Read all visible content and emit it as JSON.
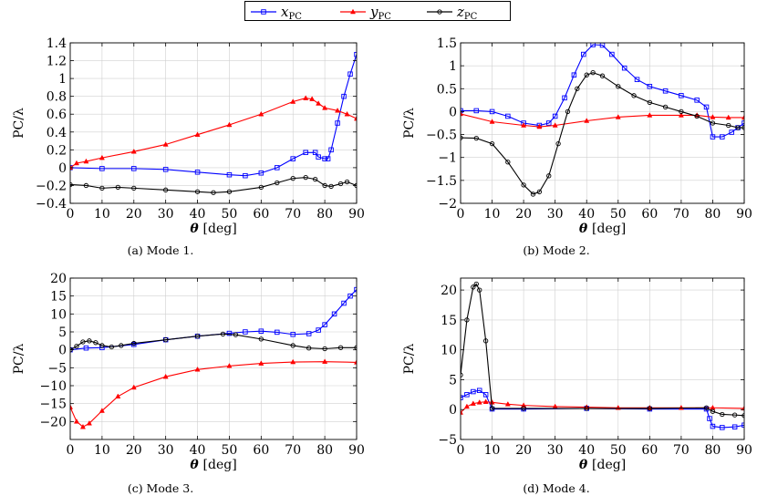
{
  "legend": [
    {
      "name": "x",
      "sub": "PC",
      "color": "#0000ff",
      "marker": "square"
    },
    {
      "name": "y",
      "sub": "PC",
      "color": "#ff0000",
      "marker": "triangle"
    },
    {
      "name": "z",
      "sub": "PC",
      "color": "#000000",
      "marker": "circle"
    }
  ],
  "chart_data": [
    {
      "type": "line",
      "caption": "(a) Mode 1.",
      "xlabel_sym": "θ",
      "xlabel_unit": "[deg]",
      "ylabel": "PC/λ",
      "xlim": [
        0,
        90
      ],
      "ylim": [
        -0.4,
        1.4
      ],
      "xticks": [
        0,
        10,
        20,
        30,
        40,
        50,
        60,
        70,
        80,
        90
      ],
      "yticks": [
        -0.4,
        -0.2,
        0,
        0.2,
        0.4,
        0.6,
        0.8,
        1,
        1.2,
        1.4
      ],
      "ytick_labels": [
        "−0.4",
        "−0.2",
        "0",
        "0.2",
        "0.4",
        "0.6",
        "0.8",
        "1",
        "1.2",
        "1.4"
      ],
      "grid": true,
      "series": [
        {
          "key": "x",
          "color": "#0000ff",
          "marker": "square",
          "points": [
            [
              0,
              0
            ],
            [
              10,
              -0.01
            ],
            [
              20,
              -0.01
            ],
            [
              30,
              -0.02
            ],
            [
              40,
              -0.05
            ],
            [
              50,
              -0.08
            ],
            [
              55,
              -0.09
            ],
            [
              60,
              -0.06
            ],
            [
              65,
              0.0
            ],
            [
              70,
              0.1
            ],
            [
              74,
              0.17
            ],
            [
              77,
              0.17
            ],
            [
              78,
              0.12
            ],
            [
              80,
              0.1
            ],
            [
              81,
              0.1
            ],
            [
              82,
              0.2
            ],
            [
              84,
              0.5
            ],
            [
              86,
              0.8
            ],
            [
              88,
              1.05
            ],
            [
              90,
              1.27
            ]
          ]
        },
        {
          "key": "y",
          "color": "#ff0000",
          "marker": "triangle",
          "points": [
            [
              0,
              0
            ],
            [
              2,
              0.05
            ],
            [
              5,
              0.07
            ],
            [
              10,
              0.11
            ],
            [
              20,
              0.18
            ],
            [
              30,
              0.26
            ],
            [
              40,
              0.37
            ],
            [
              50,
              0.48
            ],
            [
              60,
              0.6
            ],
            [
              70,
              0.74
            ],
            [
              74,
              0.78
            ],
            [
              76,
              0.77
            ],
            [
              78,
              0.72
            ],
            [
              80,
              0.67
            ],
            [
              84,
              0.64
            ],
            [
              87,
              0.6
            ],
            [
              90,
              0.55
            ]
          ]
        },
        {
          "key": "z",
          "color": "#000000",
          "marker": "circle",
          "points": [
            [
              0,
              -0.19
            ],
            [
              5,
              -0.2
            ],
            [
              10,
              -0.23
            ],
            [
              15,
              -0.22
            ],
            [
              20,
              -0.23
            ],
            [
              30,
              -0.25
            ],
            [
              40,
              -0.27
            ],
            [
              45,
              -0.28
            ],
            [
              50,
              -0.27
            ],
            [
              60,
              -0.22
            ],
            [
              65,
              -0.17
            ],
            [
              70,
              -0.12
            ],
            [
              74,
              -0.11
            ],
            [
              77,
              -0.13
            ],
            [
              80,
              -0.2
            ],
            [
              82,
              -0.21
            ],
            [
              85,
              -0.18
            ],
            [
              87,
              -0.16
            ],
            [
              90,
              -0.2
            ]
          ]
        }
      ]
    },
    {
      "type": "line",
      "caption": "(b) Mode 2.",
      "xlabel_sym": "θ",
      "xlabel_unit": "[deg]",
      "ylabel": "PC/λ",
      "xlim": [
        0,
        90
      ],
      "ylim": [
        -2,
        1.5
      ],
      "xticks": [
        0,
        10,
        20,
        30,
        40,
        50,
        60,
        70,
        80,
        90
      ],
      "yticks": [
        -2,
        -1.5,
        -1,
        -0.5,
        0,
        0.5,
        1,
        1.5
      ],
      "ytick_labels": [
        "−2",
        "−1.5",
        "−1",
        "−0.5",
        "0",
        "0.5",
        "1",
        "1.5"
      ],
      "grid": true,
      "series": [
        {
          "key": "x",
          "color": "#0000ff",
          "marker": "square",
          "points": [
            [
              0,
              0.02
            ],
            [
              5,
              0.02
            ],
            [
              10,
              0.0
            ],
            [
              15,
              -0.1
            ],
            [
              20,
              -0.25
            ],
            [
              25,
              -0.3
            ],
            [
              28,
              -0.25
            ],
            [
              30,
              -0.1
            ],
            [
              33,
              0.3
            ],
            [
              36,
              0.8
            ],
            [
              39,
              1.25
            ],
            [
              42,
              1.46
            ],
            [
              45,
              1.45
            ],
            [
              48,
              1.25
            ],
            [
              52,
              0.95
            ],
            [
              56,
              0.7
            ],
            [
              60,
              0.55
            ],
            [
              65,
              0.45
            ],
            [
              70,
              0.35
            ],
            [
              75,
              0.25
            ],
            [
              78,
              0.1
            ],
            [
              80,
              -0.55
            ],
            [
              83,
              -0.55
            ],
            [
              86,
              -0.45
            ],
            [
              88,
              -0.35
            ],
            [
              90,
              -0.25
            ]
          ]
        },
        {
          "key": "y",
          "color": "#ff0000",
          "marker": "triangle",
          "points": [
            [
              0,
              -0.05
            ],
            [
              10,
              -0.22
            ],
            [
              20,
              -0.3
            ],
            [
              25,
              -0.33
            ],
            [
              30,
              -0.3
            ],
            [
              40,
              -0.2
            ],
            [
              50,
              -0.12
            ],
            [
              60,
              -0.08
            ],
            [
              70,
              -0.08
            ],
            [
              75,
              -0.08
            ],
            [
              80,
              -0.12
            ],
            [
              85,
              -0.13
            ],
            [
              90,
              -0.13
            ]
          ]
        },
        {
          "key": "z",
          "color": "#000000",
          "marker": "circle",
          "points": [
            [
              0,
              -0.57
            ],
            [
              5,
              -0.58
            ],
            [
              10,
              -0.7
            ],
            [
              15,
              -1.1
            ],
            [
              20,
              -1.6
            ],
            [
              23,
              -1.8
            ],
            [
              25,
              -1.75
            ],
            [
              28,
              -1.4
            ],
            [
              31,
              -0.7
            ],
            [
              34,
              0.0
            ],
            [
              37,
              0.5
            ],
            [
              40,
              0.8
            ],
            [
              42,
              0.85
            ],
            [
              45,
              0.78
            ],
            [
              50,
              0.55
            ],
            [
              55,
              0.35
            ],
            [
              60,
              0.2
            ],
            [
              65,
              0.1
            ],
            [
              70,
              0.0
            ],
            [
              75,
              -0.1
            ],
            [
              80,
              -0.25
            ],
            [
              85,
              -0.3
            ],
            [
              88,
              -0.35
            ],
            [
              90,
              -0.35
            ]
          ]
        }
      ]
    },
    {
      "type": "line",
      "caption": "(c) Mode 3.",
      "xlabel_sym": "θ",
      "xlabel_unit": "[deg]",
      "ylabel": "PC/λ",
      "xlim": [
        0,
        90
      ],
      "ylim": [
        -25,
        20
      ],
      "xticks": [
        0,
        10,
        20,
        30,
        40,
        50,
        60,
        70,
        80,
        90
      ],
      "yticks": [
        -20,
        -15,
        -10,
        -5,
        0,
        5,
        10,
        15,
        20
      ],
      "ytick_labels": [
        "−20",
        "−15",
        "−10",
        "−5",
        "0",
        "5",
        "10",
        "15",
        "20"
      ],
      "grid": true,
      "series": [
        {
          "key": "x",
          "color": "#0000ff",
          "marker": "square",
          "points": [
            [
              0,
              0
            ],
            [
              5,
              0.5
            ],
            [
              10,
              0.6
            ],
            [
              20,
              1.5
            ],
            [
              30,
              2.8
            ],
            [
              40,
              3.8
            ],
            [
              50,
              4.6
            ],
            [
              55,
              5.0
            ],
            [
              60,
              5.2
            ],
            [
              65,
              4.9
            ],
            [
              70,
              4.3
            ],
            [
              75,
              4.5
            ],
            [
              78,
              5.5
            ],
            [
              80,
              7
            ],
            [
              83,
              10
            ],
            [
              86,
              13
            ],
            [
              88,
              15
            ],
            [
              90,
              16.8
            ]
          ]
        },
        {
          "key": "y",
          "color": "#ff0000",
          "marker": "triangle",
          "points": [
            [
              0,
              -16
            ],
            [
              2,
              -20
            ],
            [
              4,
              -21.5
            ],
            [
              6,
              -20.5
            ],
            [
              10,
              -17
            ],
            [
              15,
              -13
            ],
            [
              20,
              -10.5
            ],
            [
              30,
              -7.5
            ],
            [
              40,
              -5.5
            ],
            [
              50,
              -4.5
            ],
            [
              60,
              -3.8
            ],
            [
              70,
              -3.4
            ],
            [
              80,
              -3.3
            ],
            [
              90,
              -3.5
            ]
          ]
        },
        {
          "key": "z",
          "color": "#000000",
          "marker": "circle",
          "points": [
            [
              0,
              0
            ],
            [
              2,
              1
            ],
            [
              4,
              2.2
            ],
            [
              6,
              2.5
            ],
            [
              8,
              2.0
            ],
            [
              10,
              1.2
            ],
            [
              13,
              0.8
            ],
            [
              16,
              1.2
            ],
            [
              20,
              1.8
            ],
            [
              30,
              2.8
            ],
            [
              40,
              3.8
            ],
            [
              48,
              4.4
            ],
            [
              52,
              4.2
            ],
            [
              60,
              3.0
            ],
            [
              70,
              1.2
            ],
            [
              75,
              0.5
            ],
            [
              80,
              0.3
            ],
            [
              85,
              0.6
            ],
            [
              90,
              0.6
            ]
          ]
        }
      ]
    },
    {
      "type": "line",
      "caption": "(d) Mode 4.",
      "xlabel_sym": "θ",
      "xlabel_unit": "[deg]",
      "ylabel": "PC/λ",
      "xlim": [
        0,
        90
      ],
      "ylim": [
        -5,
        22
      ],
      "xticks": [
        0,
        10,
        20,
        30,
        40,
        50,
        60,
        70,
        80,
        90
      ],
      "yticks": [
        -5,
        0,
        5,
        10,
        15,
        20
      ],
      "ytick_labels": [
        "−5",
        "0",
        "5",
        "10",
        "15",
        "20"
      ],
      "grid": true,
      "series": [
        {
          "key": "x",
          "color": "#0000ff",
          "marker": "square",
          "points": [
            [
              0,
              2
            ],
            [
              2,
              2.5
            ],
            [
              4,
              3
            ],
            [
              6,
              3.2
            ],
            [
              8,
              2.5
            ],
            [
              10,
              0.1
            ],
            [
              20,
              0.1
            ],
            [
              40,
              0.2
            ],
            [
              60,
              0.1
            ],
            [
              78,
              0.1
            ],
            [
              79,
              -1.5
            ],
            [
              80,
              -2.8
            ],
            [
              83,
              -3
            ],
            [
              87,
              -2.9
            ],
            [
              90,
              -2.6
            ]
          ]
        },
        {
          "key": "y",
          "color": "#ff0000",
          "marker": "triangle",
          "points": [
            [
              0,
              -0.5
            ],
            [
              2,
              0.5
            ],
            [
              4,
              1.0
            ],
            [
              6,
              1.2
            ],
            [
              8,
              1.3
            ],
            [
              10,
              1.2
            ],
            [
              15,
              0.9
            ],
            [
              20,
              0.7
            ],
            [
              30,
              0.5
            ],
            [
              40,
              0.4
            ],
            [
              50,
              0.3
            ],
            [
              60,
              0.3
            ],
            [
              70,
              0.3
            ],
            [
              80,
              0.3
            ],
            [
              90,
              0.2
            ]
          ]
        },
        {
          "key": "z",
          "color": "#000000",
          "marker": "circle",
          "points": [
            [
              0,
              5.8
            ],
            [
              2,
              15
            ],
            [
              4,
              20.5
            ],
            [
              5,
              21
            ],
            [
              6,
              20
            ],
            [
              8,
              11.5
            ],
            [
              10,
              0.2
            ],
            [
              20,
              0.2
            ],
            [
              40,
              0.2
            ],
            [
              60,
              0.2
            ],
            [
              78,
              0.3
            ],
            [
              80,
              -0.3
            ],
            [
              83,
              -0.8
            ],
            [
              87,
              -0.9
            ],
            [
              90,
              -1
            ]
          ]
        }
      ]
    }
  ]
}
